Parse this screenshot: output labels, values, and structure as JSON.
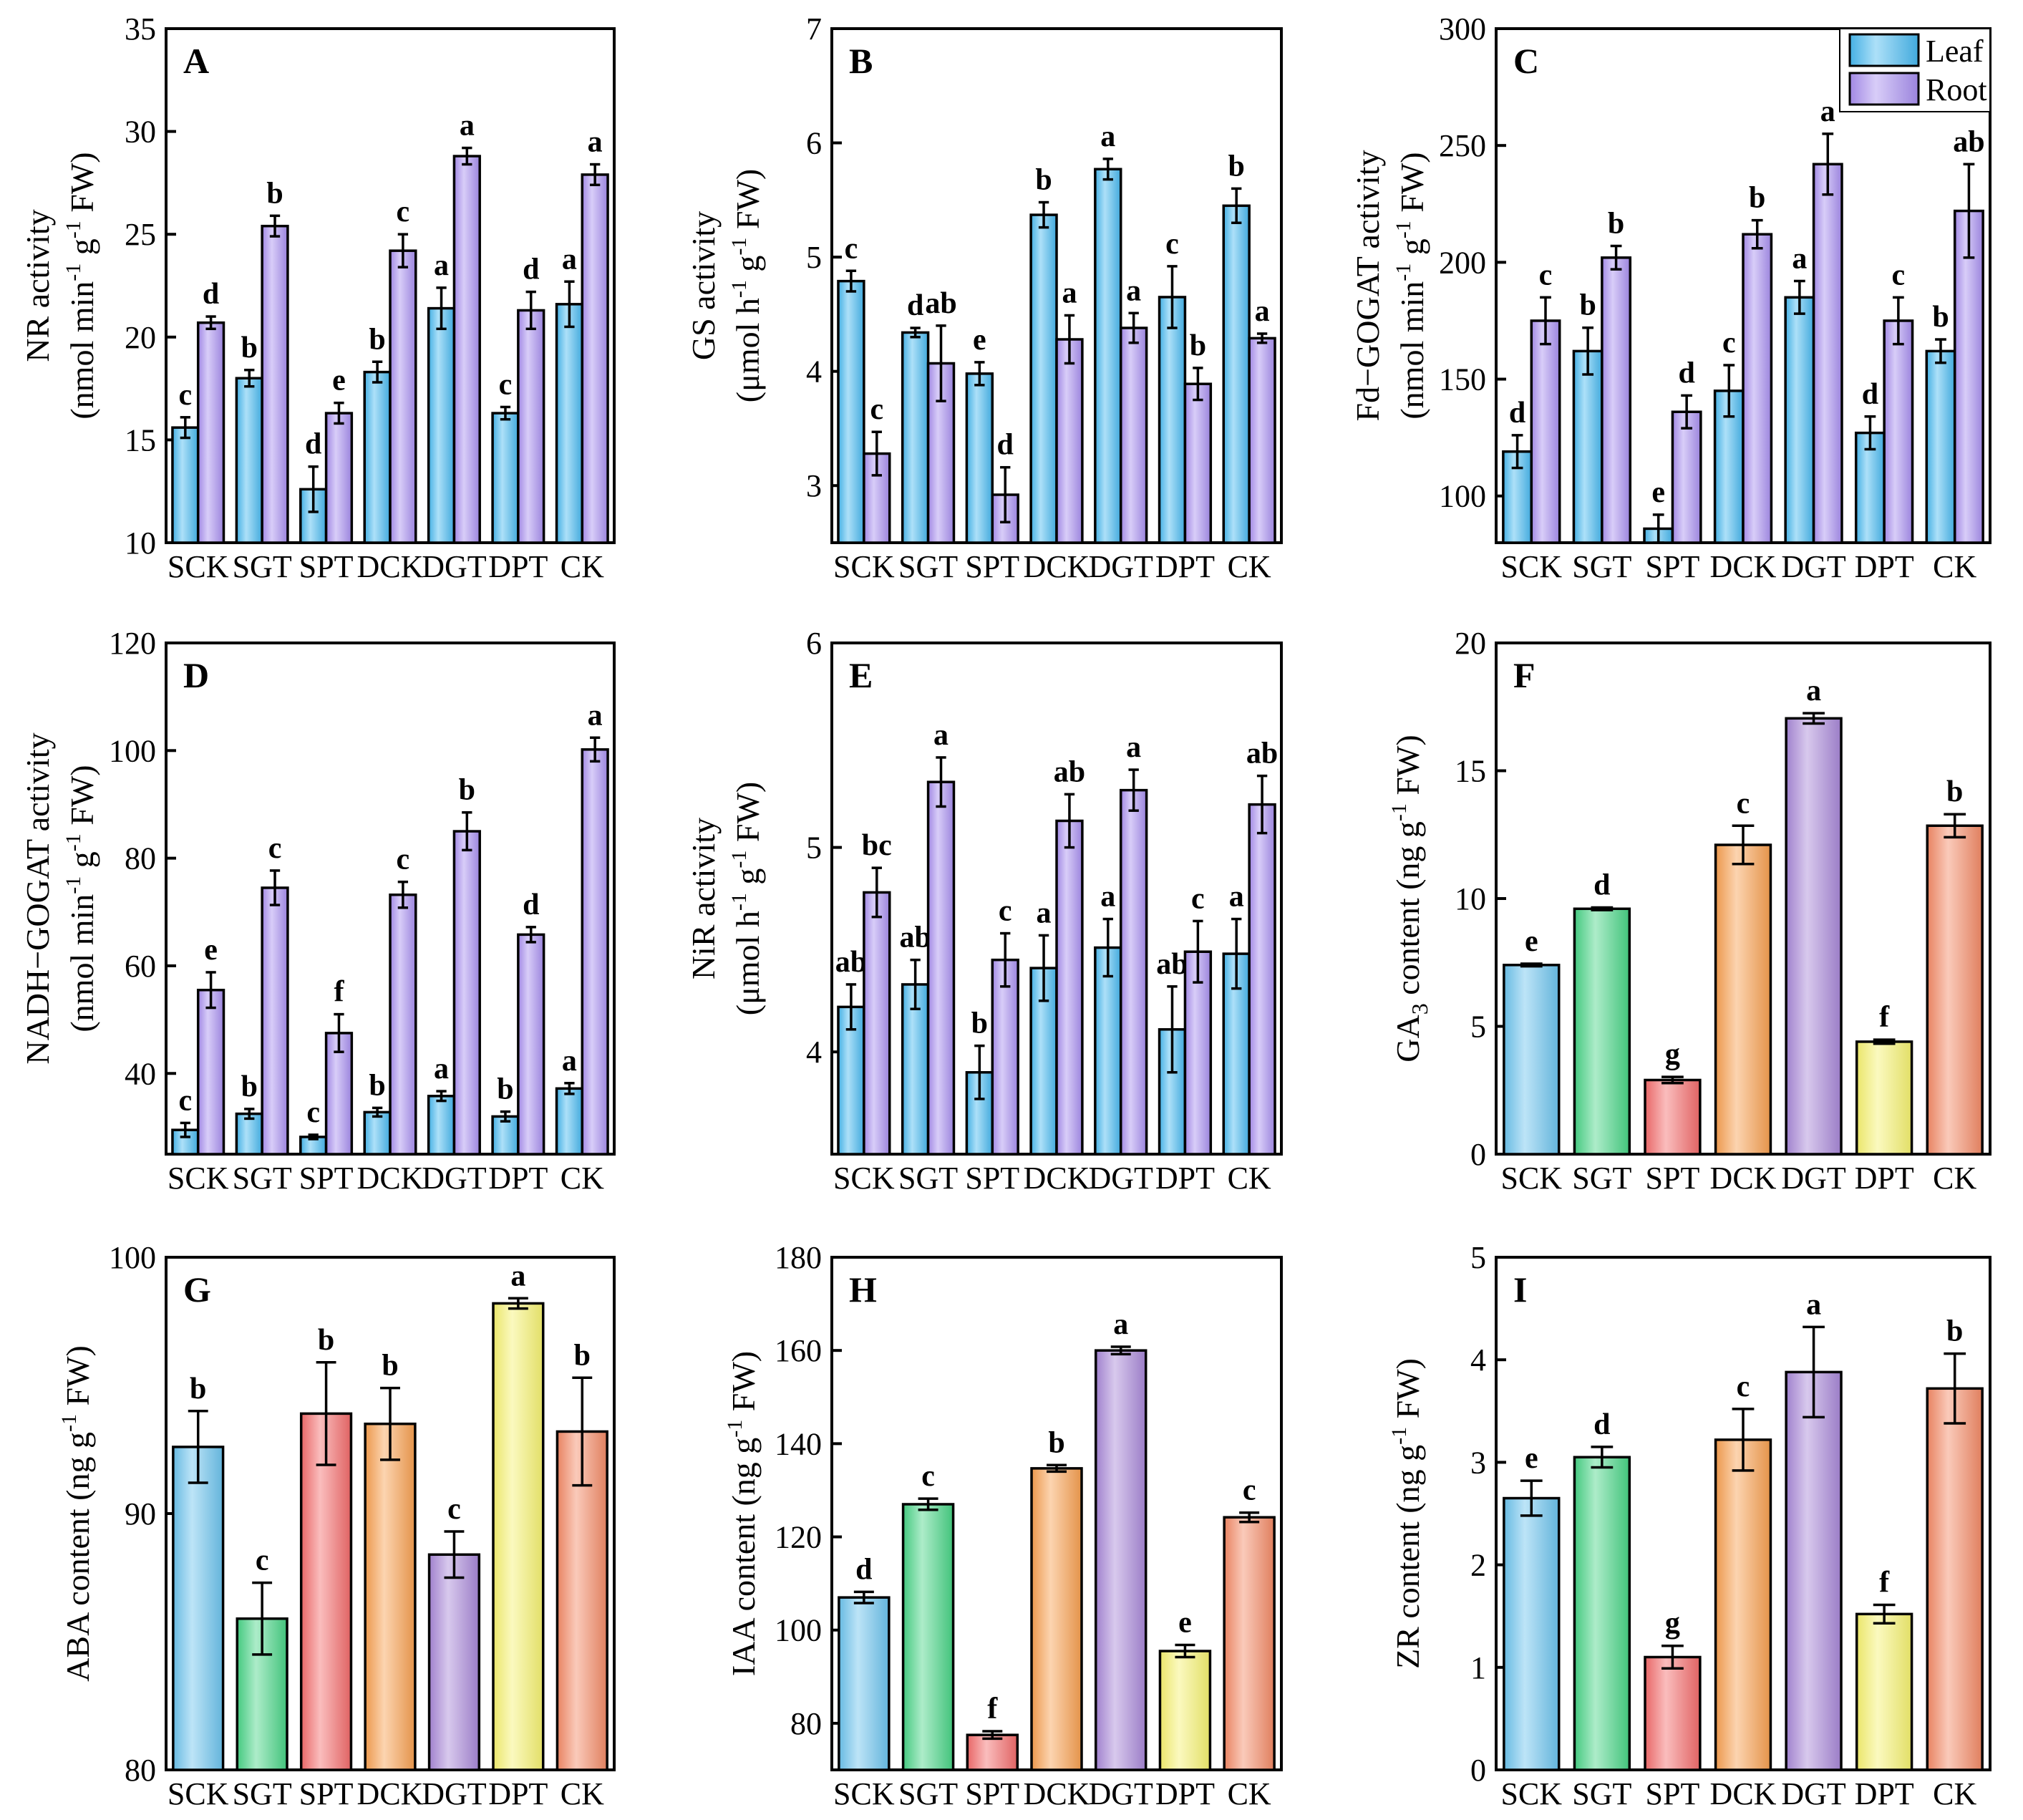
{
  "colors": {
    "leaf": "#48b9f0",
    "root": "#a98ff0",
    "hormones": [
      "#6cc4ee",
      "#48d486",
      "#f46c6c",
      "#f8a050",
      "#a888d8",
      "#f6f270",
      "#f48a66"
    ],
    "axis": "#000000"
  },
  "legend": {
    "leaf": "Leaf",
    "root": "Root"
  },
  "categories": [
    "SCK",
    "SGT",
    "SPT",
    "DCK",
    "DGT",
    "DPT",
    "CK"
  ],
  "chart_data": [
    {
      "id": "A",
      "label": "A",
      "type": "bar",
      "ylabel": "NR activity",
      "yunit_pre": "(nmol min",
      "yunit_mid": " g",
      "yunit_post": " FW)",
      "ylim": [
        10,
        35
      ],
      "yticks": [
        10,
        15,
        20,
        25,
        30,
        35
      ],
      "categories": [
        "SCK",
        "SGT",
        "SPT",
        "DCK",
        "DGT",
        "DPT",
        "CK"
      ],
      "series": [
        {
          "name": "Leaf",
          "values": [
            15.6,
            18.0,
            12.6,
            18.3,
            21.4,
            16.3,
            21.6
          ],
          "errors": [
            0.5,
            0.4,
            1.1,
            0.5,
            1.0,
            0.3,
            1.1
          ],
          "letters": [
            "c",
            "b",
            "d",
            "b",
            "a",
            "c",
            "a"
          ]
        },
        {
          "name": "Root",
          "values": [
            20.7,
            25.4,
            16.3,
            24.2,
            28.8,
            21.3,
            27.9
          ],
          "errors": [
            0.3,
            0.5,
            0.5,
            0.8,
            0.4,
            0.9,
            0.5
          ],
          "letters": [
            "d",
            "b",
            "e",
            "c",
            "a",
            "d",
            "a"
          ]
        }
      ]
    },
    {
      "id": "B",
      "label": "B",
      "type": "bar",
      "ylabel": "GS activity",
      "yunit_pre": "(μmol h",
      "yunit_mid": " g",
      "yunit_post": " FW)",
      "ylim": [
        2.5,
        7
      ],
      "yticks": [
        3,
        4,
        5,
        6,
        7
      ],
      "categories": [
        "SCK",
        "SGT",
        "SPT",
        "DCK",
        "DGT",
        "DPT",
        "CK"
      ],
      "series": [
        {
          "name": "Leaf",
          "values": [
            4.79,
            4.34,
            3.98,
            5.37,
            5.77,
            4.65,
            5.45
          ],
          "errors": [
            0.09,
            0.04,
            0.1,
            0.11,
            0.09,
            0.27,
            0.15
          ],
          "letters": [
            "c",
            "d",
            "e",
            "b",
            "a",
            "c",
            "b"
          ]
        },
        {
          "name": "Root",
          "values": [
            3.28,
            4.07,
            2.92,
            4.28,
            4.38,
            3.89,
            4.29
          ],
          "errors": [
            0.19,
            0.33,
            0.24,
            0.21,
            0.13,
            0.14,
            0.04
          ],
          "letters": [
            "c",
            "ab",
            "d",
            "a",
            "a",
            "b",
            "a"
          ]
        }
      ]
    },
    {
      "id": "C",
      "label": "C",
      "type": "bar",
      "ylabel": "Fd−GOGAT activity",
      "yunit_pre": "(nmol min",
      "yunit_mid": " g",
      "yunit_post": " FW)",
      "ylim": [
        80,
        300
      ],
      "yticks": [
        100,
        150,
        200,
        250,
        300
      ],
      "categories": [
        "SCK",
        "SGT",
        "SPT",
        "DCK",
        "DGT",
        "DPT",
        "CK"
      ],
      "series": [
        {
          "name": "Leaf",
          "values": [
            119,
            162,
            86,
            145,
            185,
            127,
            162
          ],
          "errors": [
            7,
            10,
            6,
            11,
            7,
            7,
            5
          ],
          "letters": [
            "d",
            "b",
            "e",
            "c",
            "a",
            "d",
            "b"
          ]
        },
        {
          "name": "Root",
          "values": [
            175,
            202,
            136,
            212,
            242,
            175,
            222
          ],
          "errors": [
            10,
            5,
            7,
            6,
            13,
            10,
            20
          ],
          "letters": [
            "c",
            "b",
            "d",
            "b",
            "a",
            "c",
            "ab"
          ]
        }
      ]
    },
    {
      "id": "D",
      "label": "D",
      "type": "bar",
      "ylabel": "NADH−GOGAT activity",
      "yunit_pre": "(nmol min",
      "yunit_mid": " g",
      "yunit_post": " FW)",
      "ylim": [
        25,
        120
      ],
      "yticks": [
        40,
        60,
        80,
        100,
        120
      ],
      "categories": [
        "SCK",
        "SGT",
        "SPT",
        "DCK",
        "DGT",
        "DPT",
        "CK"
      ],
      "series": [
        {
          "name": "Leaf",
          "values": [
            29.5,
            32.5,
            28.2,
            32.8,
            35.8,
            32.0,
            37.2
          ],
          "errors": [
            1.3,
            0.9,
            0.4,
            0.8,
            0.9,
            0.9,
            1.0
          ],
          "letters": [
            "c",
            "b",
            "c",
            "b",
            "a",
            "b",
            "a"
          ]
        },
        {
          "name": "Root",
          "values": [
            55.5,
            74.5,
            47.5,
            73.2,
            85.0,
            65.8,
            100.2
          ],
          "errors": [
            3.3,
            3.2,
            3.5,
            2.4,
            3.5,
            1.4,
            2.2
          ],
          "letters": [
            "e",
            "c",
            "f",
            "c",
            "b",
            "d",
            "a"
          ]
        }
      ]
    },
    {
      "id": "E",
      "label": "E",
      "type": "bar",
      "ylabel": "NiR activity",
      "yunit_pre": "(μmol h",
      "yunit_mid": " g",
      "yunit_post": " FW)",
      "ylim": [
        3.5,
        6
      ],
      "yticks": [
        4,
        5,
        6
      ],
      "categories": [
        "SCK",
        "SGT",
        "SPT",
        "DCK",
        "DGT",
        "DPT",
        "CK"
      ],
      "series": [
        {
          "name": "Leaf",
          "values": [
            4.22,
            4.33,
            3.9,
            4.41,
            4.51,
            4.11,
            4.48
          ],
          "errors": [
            0.11,
            0.12,
            0.13,
            0.16,
            0.14,
            0.21,
            0.17
          ],
          "letters": [
            "ab",
            "ab",
            "b",
            "a",
            "a",
            "ab",
            "a"
          ]
        },
        {
          "name": "Root",
          "values": [
            4.78,
            5.32,
            4.45,
            5.13,
            5.28,
            4.49,
            5.21
          ],
          "errors": [
            0.12,
            0.12,
            0.13,
            0.13,
            0.1,
            0.15,
            0.14
          ],
          "letters": [
            "bc",
            "a",
            "c",
            "ab",
            "a",
            "c",
            "ab"
          ]
        }
      ]
    },
    {
      "id": "F",
      "label": "F",
      "type": "bar",
      "ylabel": "GA",
      "ylabel_sub": "3",
      "ylabel_post": " content (ng g",
      "ylabel_tail": " FW)",
      "ylim": [
        0,
        20
      ],
      "yticks": [
        0,
        5,
        10,
        15,
        20
      ],
      "categories": [
        "SCK",
        "SGT",
        "SPT",
        "DCK",
        "DGT",
        "DPT",
        "CK"
      ],
      "values": [
        7.4,
        9.6,
        2.9,
        12.1,
        17.05,
        4.4,
        12.85
      ],
      "errors": [
        0.05,
        0.05,
        0.12,
        0.75,
        0.2,
        0.08,
        0.45
      ],
      "letters": [
        "e",
        "d",
        "g",
        "c",
        "a",
        "f",
        "b"
      ]
    },
    {
      "id": "G",
      "label": "G",
      "type": "bar",
      "ylabel": "ABA content (ng g",
      "ylabel_tail": " FW)",
      "ylim": [
        80,
        100
      ],
      "yticks": [
        80,
        90,
        100
      ],
      "categories": [
        "SCK",
        "SGT",
        "SPT",
        "DCK",
        "DGT",
        "DPT",
        "CK"
      ],
      "values": [
        92.6,
        85.9,
        93.9,
        93.5,
        88.4,
        98.2,
        93.2
      ],
      "errors": [
        1.4,
        1.4,
        2.0,
        1.4,
        0.9,
        0.2,
        2.1
      ],
      "letters": [
        "b",
        "c",
        "b",
        "b",
        "c",
        "a",
        "b"
      ]
    },
    {
      "id": "H",
      "label": "H",
      "type": "bar",
      "ylabel": "IAA content (ng g",
      "ylabel_tail": " FW)",
      "ylim": [
        70,
        180
      ],
      "yticks": [
        80,
        100,
        120,
        140,
        160,
        180
      ],
      "categories": [
        "SCK",
        "SGT",
        "SPT",
        "DCK",
        "DGT",
        "DPT",
        "CK"
      ],
      "values": [
        107,
        127,
        77.5,
        134.7,
        160,
        95.5,
        124.2
      ],
      "errors": [
        1.2,
        1.2,
        0.8,
        0.7,
        0.8,
        1.3,
        1.0
      ],
      "letters": [
        "d",
        "c",
        "f",
        "b",
        "a",
        "e",
        "c"
      ]
    },
    {
      "id": "I",
      "label": "I",
      "type": "bar",
      "ylabel": "ZR content (ng g",
      "ylabel_tail": " FW)",
      "ylim": [
        0,
        5
      ],
      "yticks": [
        0,
        1,
        2,
        3,
        4,
        5
      ],
      "categories": [
        "SCK",
        "SGT",
        "SPT",
        "DCK",
        "DGT",
        "DPT",
        "CK"
      ],
      "values": [
        2.65,
        3.05,
        1.1,
        3.22,
        3.88,
        1.52,
        3.72
      ],
      "errors": [
        0.17,
        0.1,
        0.11,
        0.3,
        0.44,
        0.09,
        0.34
      ],
      "letters": [
        "e",
        "d",
        "g",
        "c",
        "a",
        "f",
        "b"
      ]
    }
  ]
}
